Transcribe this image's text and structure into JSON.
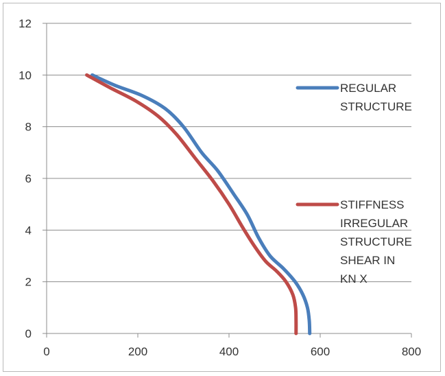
{
  "chart_data": {
    "type": "line",
    "title": "",
    "xlabel": "",
    "ylabel": "",
    "xlim": [
      0,
      800
    ],
    "ylim": [
      0,
      12
    ],
    "xticks": [
      0,
      200,
      400,
      600,
      800
    ],
    "yticks": [
      0,
      2,
      4,
      6,
      8,
      10,
      12
    ],
    "grid": "horizontal",
    "legend_position": "right",
    "series": [
      {
        "name": "REGULAR STRUCTURE",
        "color": "#4a7ebb",
        "points": [
          [
            100,
            10
          ],
          [
            150,
            9.6
          ],
          [
            210,
            9.2
          ],
          [
            260,
            8.7
          ],
          [
            300,
            8
          ],
          [
            340,
            7
          ],
          [
            375,
            6.3
          ],
          [
            410,
            5.4
          ],
          [
            440,
            4.6
          ],
          [
            465,
            3.7
          ],
          [
            490,
            3
          ],
          [
            520,
            2.5
          ],
          [
            545,
            2
          ],
          [
            562,
            1.5
          ],
          [
            572,
            1
          ],
          [
            576,
            0.5
          ],
          [
            577,
            0
          ]
        ]
      },
      {
        "name": "STIFFNESS IRREGULAR STRUCTURE SHEAR IN KN X",
        "color": "#be4b48",
        "points": [
          [
            88,
            10
          ],
          [
            140,
            9.5
          ],
          [
            195,
            9
          ],
          [
            245,
            8.4
          ],
          [
            285,
            7.7
          ],
          [
            325,
            6.8
          ],
          [
            365,
            5.9
          ],
          [
            400,
            5
          ],
          [
            430,
            4.1
          ],
          [
            455,
            3.4
          ],
          [
            480,
            2.8
          ],
          [
            505,
            2.4
          ],
          [
            525,
            2
          ],
          [
            540,
            1.5
          ],
          [
            546,
            1
          ],
          [
            547,
            0.5
          ],
          [
            547,
            0
          ]
        ]
      }
    ]
  }
}
